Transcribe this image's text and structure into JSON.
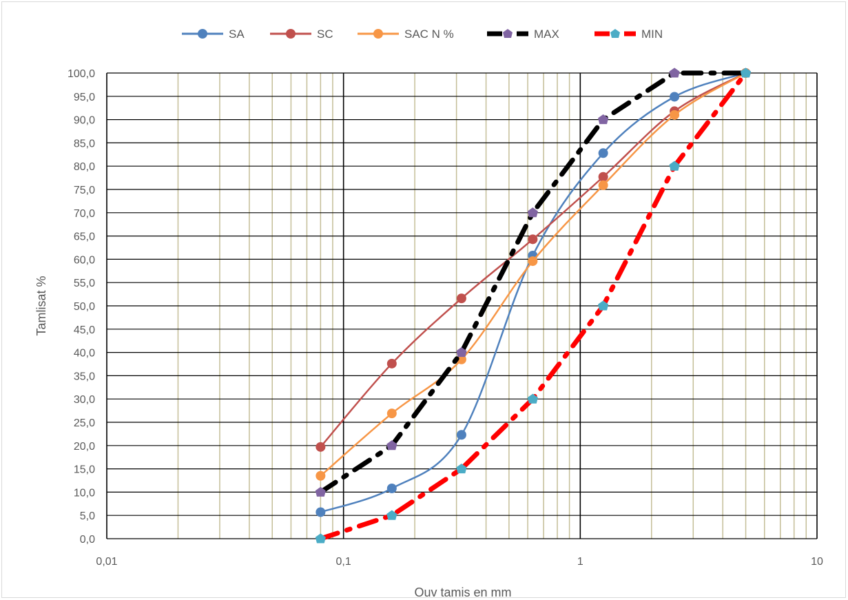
{
  "chart_data": {
    "type": "line",
    "x_scale": "log",
    "xlabel": "Ouv tamis en mm",
    "ylabel": "Tamlisat %",
    "xlim": [
      0.01,
      10
    ],
    "ylim": [
      0,
      100
    ],
    "x_ticks": [
      "0,01",
      "0,1",
      "1",
      "10"
    ],
    "y_ticks": [
      "0,0",
      "5,0",
      "10,0",
      "15,0",
      "20,0",
      "25,0",
      "30,0",
      "35,0",
      "40,0",
      "45,0",
      "50,0",
      "55,0",
      "60,0",
      "65,0",
      "70,0",
      "75,0",
      "80,0",
      "85,0",
      "90,0",
      "95,0",
      "100,0"
    ],
    "grid": true,
    "legend_position": "top",
    "series": [
      {
        "name": "SA",
        "color": "#4f81bd",
        "style": "smooth",
        "x": [
          0.08,
          0.16,
          0.315,
          0.63,
          1.25,
          2.5,
          5
        ],
        "y": [
          5.7,
          10.8,
          22.3,
          60.8,
          82.8,
          94.9,
          100
        ]
      },
      {
        "name": "SC",
        "color": "#c0504d",
        "style": "smooth",
        "x": [
          0.08,
          0.16,
          0.315,
          0.63,
          1.25,
          2.5,
          5
        ],
        "y": [
          19.7,
          37.6,
          51.6,
          64.3,
          77.7,
          91.8,
          100
        ]
      },
      {
        "name": "SAC N %",
        "color": "#f79646",
        "style": "smooth",
        "x": [
          0.08,
          0.16,
          0.315,
          0.63,
          1.25,
          2.5,
          5
        ],
        "y": [
          13.5,
          26.9,
          38.5,
          59.6,
          75.9,
          91.0,
          100
        ]
      },
      {
        "name": "MAX",
        "color": "#000000",
        "marker_color": "#8064a2",
        "style": "dashdot",
        "x": [
          0.08,
          0.16,
          0.315,
          0.63,
          1.25,
          2.5,
          5
        ],
        "y": [
          10,
          20,
          40,
          70,
          90,
          100,
          100
        ]
      },
      {
        "name": "MIN",
        "color": "#ff0000",
        "marker_color": "#4bacc6",
        "style": "dashdot",
        "x": [
          0.08,
          0.16,
          0.315,
          0.63,
          1.25,
          2.5,
          5
        ],
        "y": [
          0,
          5,
          15,
          30,
          50,
          80,
          100
        ]
      }
    ]
  }
}
